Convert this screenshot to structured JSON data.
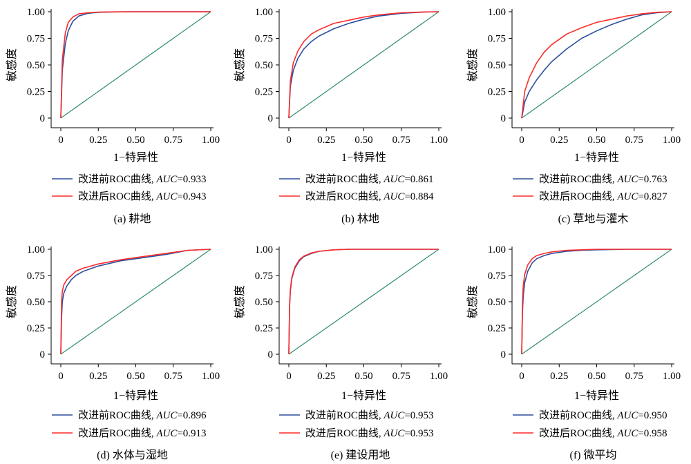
{
  "figure": {
    "x_label": "1−特异性",
    "y_label": "敏感度",
    "x_ticks": [
      "0",
      "0.25",
      "0.50",
      "0.75",
      "1.00"
    ],
    "y_ticks": [
      "0",
      "0.25",
      "0.50",
      "0.75",
      "1.00"
    ],
    "series_colors": {
      "before": "#2b4f9e",
      "after": "#ff2a2a",
      "diagonal": "#2e8b6a"
    }
  },
  "chart_data": [
    {
      "type": "line",
      "caption": "(a) 耕地",
      "xlabel": "1−特异性",
      "ylabel": "敏感度",
      "xlim": [
        0,
        1
      ],
      "ylim": [
        0,
        1
      ],
      "series": [
        {
          "name": "改进前ROC曲线",
          "auc_label": "AUC",
          "auc_value": "=0.933",
          "x": [
            0,
            0.01,
            0.03,
            0.05,
            0.08,
            0.12,
            0.18,
            0.25,
            0.35,
            0.5,
            1.0
          ],
          "y": [
            0,
            0.45,
            0.7,
            0.82,
            0.91,
            0.96,
            0.985,
            0.995,
            0.998,
            1.0,
            1.0
          ]
        },
        {
          "name": "改进后ROC曲线",
          "auc_label": "AUC",
          "auc_value": "=0.943",
          "x": [
            0,
            0.01,
            0.03,
            0.05,
            0.08,
            0.12,
            0.18,
            0.25,
            0.35,
            0.5,
            1.0
          ],
          "y": [
            0,
            0.55,
            0.8,
            0.9,
            0.95,
            0.98,
            0.99,
            0.997,
            0.999,
            1.0,
            1.0
          ]
        }
      ]
    },
    {
      "type": "line",
      "caption": "(b) 林地",
      "xlabel": "1−特异性",
      "ylabel": "敏感度",
      "xlim": [
        0,
        1
      ],
      "ylim": [
        0,
        1
      ],
      "series": [
        {
          "name": "改进前ROC曲线",
          "auc_label": "AUC",
          "auc_value": "=0.861",
          "x": [
            0,
            0.01,
            0.03,
            0.06,
            0.1,
            0.15,
            0.2,
            0.3,
            0.4,
            0.5,
            0.6,
            0.75,
            0.9,
            1.0
          ],
          "y": [
            0,
            0.3,
            0.45,
            0.56,
            0.65,
            0.72,
            0.77,
            0.84,
            0.89,
            0.93,
            0.96,
            0.985,
            0.997,
            1.0
          ]
        },
        {
          "name": "改进后ROC曲线",
          "auc_label": "AUC",
          "auc_value": "=0.884",
          "x": [
            0,
            0.01,
            0.03,
            0.06,
            0.1,
            0.15,
            0.2,
            0.3,
            0.4,
            0.5,
            0.6,
            0.75,
            0.9,
            1.0
          ],
          "y": [
            0,
            0.35,
            0.52,
            0.63,
            0.72,
            0.79,
            0.83,
            0.89,
            0.92,
            0.95,
            0.97,
            0.99,
            0.998,
            1.0
          ]
        }
      ]
    },
    {
      "type": "line",
      "caption": "(c) 草地与灌木",
      "xlabel": "1−特异性",
      "ylabel": "敏感度",
      "xlim": [
        0,
        1
      ],
      "ylim": [
        0,
        1
      ],
      "series": [
        {
          "name": "改进前ROC曲线",
          "auc_label": "AUC",
          "auc_value": "=0.763",
          "x": [
            0,
            0.02,
            0.05,
            0.1,
            0.15,
            0.2,
            0.3,
            0.4,
            0.5,
            0.6,
            0.7,
            0.8,
            0.9,
            1.0
          ],
          "y": [
            0,
            0.15,
            0.25,
            0.36,
            0.45,
            0.53,
            0.65,
            0.75,
            0.82,
            0.88,
            0.93,
            0.97,
            0.99,
            1.0
          ]
        },
        {
          "name": "改进后ROC曲线",
          "auc_label": "AUC",
          "auc_value": "=0.827",
          "x": [
            0,
            0.02,
            0.05,
            0.1,
            0.15,
            0.2,
            0.3,
            0.4,
            0.5,
            0.6,
            0.7,
            0.8,
            0.9,
            1.0
          ],
          "y": [
            0,
            0.25,
            0.38,
            0.52,
            0.62,
            0.69,
            0.79,
            0.85,
            0.9,
            0.93,
            0.96,
            0.98,
            0.995,
            1.0
          ]
        }
      ]
    },
    {
      "type": "line",
      "caption": "(d) 水体与湿地",
      "xlabel": "1−特异性",
      "ylabel": "敏感度",
      "xlim": [
        0,
        1
      ],
      "ylim": [
        0,
        1
      ],
      "series": [
        {
          "name": "改进前ROC曲线",
          "auc_label": "AUC",
          "auc_value": "=0.896",
          "x": [
            0,
            0.005,
            0.01,
            0.02,
            0.04,
            0.07,
            0.1,
            0.15,
            0.25,
            0.4,
            0.55,
            0.7,
            0.85,
            1.0
          ],
          "y": [
            0,
            0.35,
            0.5,
            0.58,
            0.65,
            0.71,
            0.75,
            0.79,
            0.84,
            0.89,
            0.92,
            0.95,
            0.99,
            1.0
          ]
        },
        {
          "name": "改进后ROC曲线",
          "auc_label": "AUC",
          "auc_value": "=0.913",
          "x": [
            0,
            0.005,
            0.01,
            0.02,
            0.04,
            0.07,
            0.1,
            0.15,
            0.25,
            0.4,
            0.55,
            0.7,
            0.85,
            1.0
          ],
          "y": [
            0,
            0.5,
            0.6,
            0.66,
            0.71,
            0.75,
            0.79,
            0.82,
            0.86,
            0.9,
            0.93,
            0.96,
            0.99,
            1.0
          ]
        }
      ]
    },
    {
      "type": "line",
      "caption": "(e) 建设用地",
      "xlabel": "1−特异性",
      "ylabel": "敏感度",
      "xlim": [
        0,
        1
      ],
      "ylim": [
        0,
        1
      ],
      "series": [
        {
          "name": "改进前ROC曲线",
          "auc_label": "AUC",
          "auc_value": "=0.953",
          "x": [
            0,
            0.005,
            0.01,
            0.02,
            0.04,
            0.07,
            0.1,
            0.15,
            0.2,
            0.3,
            0.4,
            1.0
          ],
          "y": [
            0,
            0.45,
            0.6,
            0.72,
            0.82,
            0.89,
            0.93,
            0.96,
            0.98,
            0.995,
            1.0,
            1.0
          ]
        },
        {
          "name": "改进后ROC曲线",
          "auc_label": "AUC",
          "auc_value": "=0.953",
          "x": [
            0,
            0.005,
            0.01,
            0.02,
            0.04,
            0.07,
            0.1,
            0.15,
            0.2,
            0.3,
            0.4,
            1.0
          ],
          "y": [
            0,
            0.47,
            0.62,
            0.73,
            0.83,
            0.9,
            0.935,
            0.965,
            0.98,
            0.995,
            1.0,
            1.0
          ]
        }
      ]
    },
    {
      "type": "line",
      "caption": "(f) 微平均",
      "xlabel": "1−特异性",
      "ylabel": "敏感度",
      "xlim": [
        0,
        1
      ],
      "ylim": [
        0,
        1
      ],
      "series": [
        {
          "name": "改进前ROC曲线",
          "auc_label": "AUC",
          "auc_value": "=0.950",
          "x": [
            0,
            0.005,
            0.01,
            0.02,
            0.04,
            0.07,
            0.1,
            0.15,
            0.2,
            0.3,
            0.4,
            0.5,
            0.7,
            1.0
          ],
          "y": [
            0,
            0.4,
            0.55,
            0.68,
            0.79,
            0.87,
            0.91,
            0.94,
            0.96,
            0.98,
            0.99,
            0.995,
            1.0,
            1.0
          ]
        },
        {
          "name": "改进后ROC曲线",
          "auc_label": "AUC",
          "auc_value": "=0.958",
          "x": [
            0,
            0.005,
            0.01,
            0.02,
            0.04,
            0.07,
            0.1,
            0.15,
            0.2,
            0.3,
            0.4,
            0.5,
            0.7,
            1.0
          ],
          "y": [
            0,
            0.5,
            0.65,
            0.76,
            0.85,
            0.91,
            0.94,
            0.96,
            0.975,
            0.99,
            0.995,
            1.0,
            1.0,
            1.0
          ]
        }
      ]
    }
  ]
}
